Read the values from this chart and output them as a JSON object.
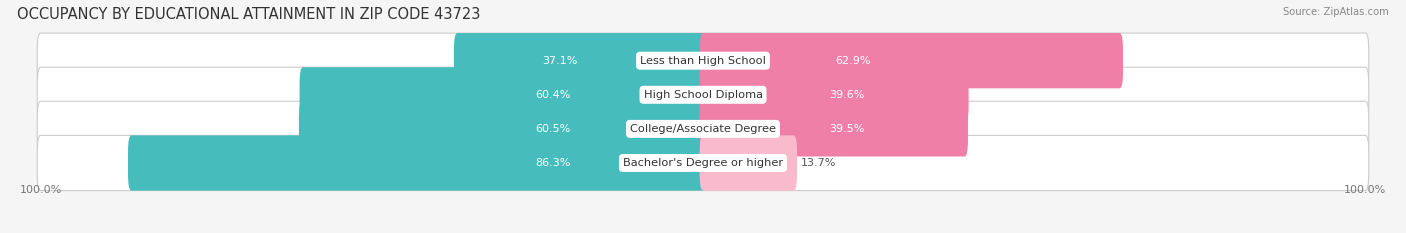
{
  "title": "OCCUPANCY BY EDUCATIONAL ATTAINMENT IN ZIP CODE 43723",
  "source": "Source: ZipAtlas.com",
  "categories": [
    "Less than High School",
    "High School Diploma",
    "College/Associate Degree",
    "Bachelor's Degree or higher"
  ],
  "owner_pct": [
    37.1,
    60.4,
    60.5,
    86.3
  ],
  "renter_pct": [
    62.9,
    39.6,
    39.5,
    13.7
  ],
  "owner_color": "#47BCBD",
  "renter_color": "#F07FA8",
  "renter_color_light": "#F9BACE",
  "bg_color": "#f5f5f5",
  "bar_bg_color": "#e2e2e2",
  "title_fontsize": 10.5,
  "label_fontsize": 8.2,
  "pct_fontsize": 8.0,
  "axis_label_fontsize": 8,
  "legend_fontsize": 8.5,
  "bar_height": 0.62,
  "bar_gap": 0.38
}
